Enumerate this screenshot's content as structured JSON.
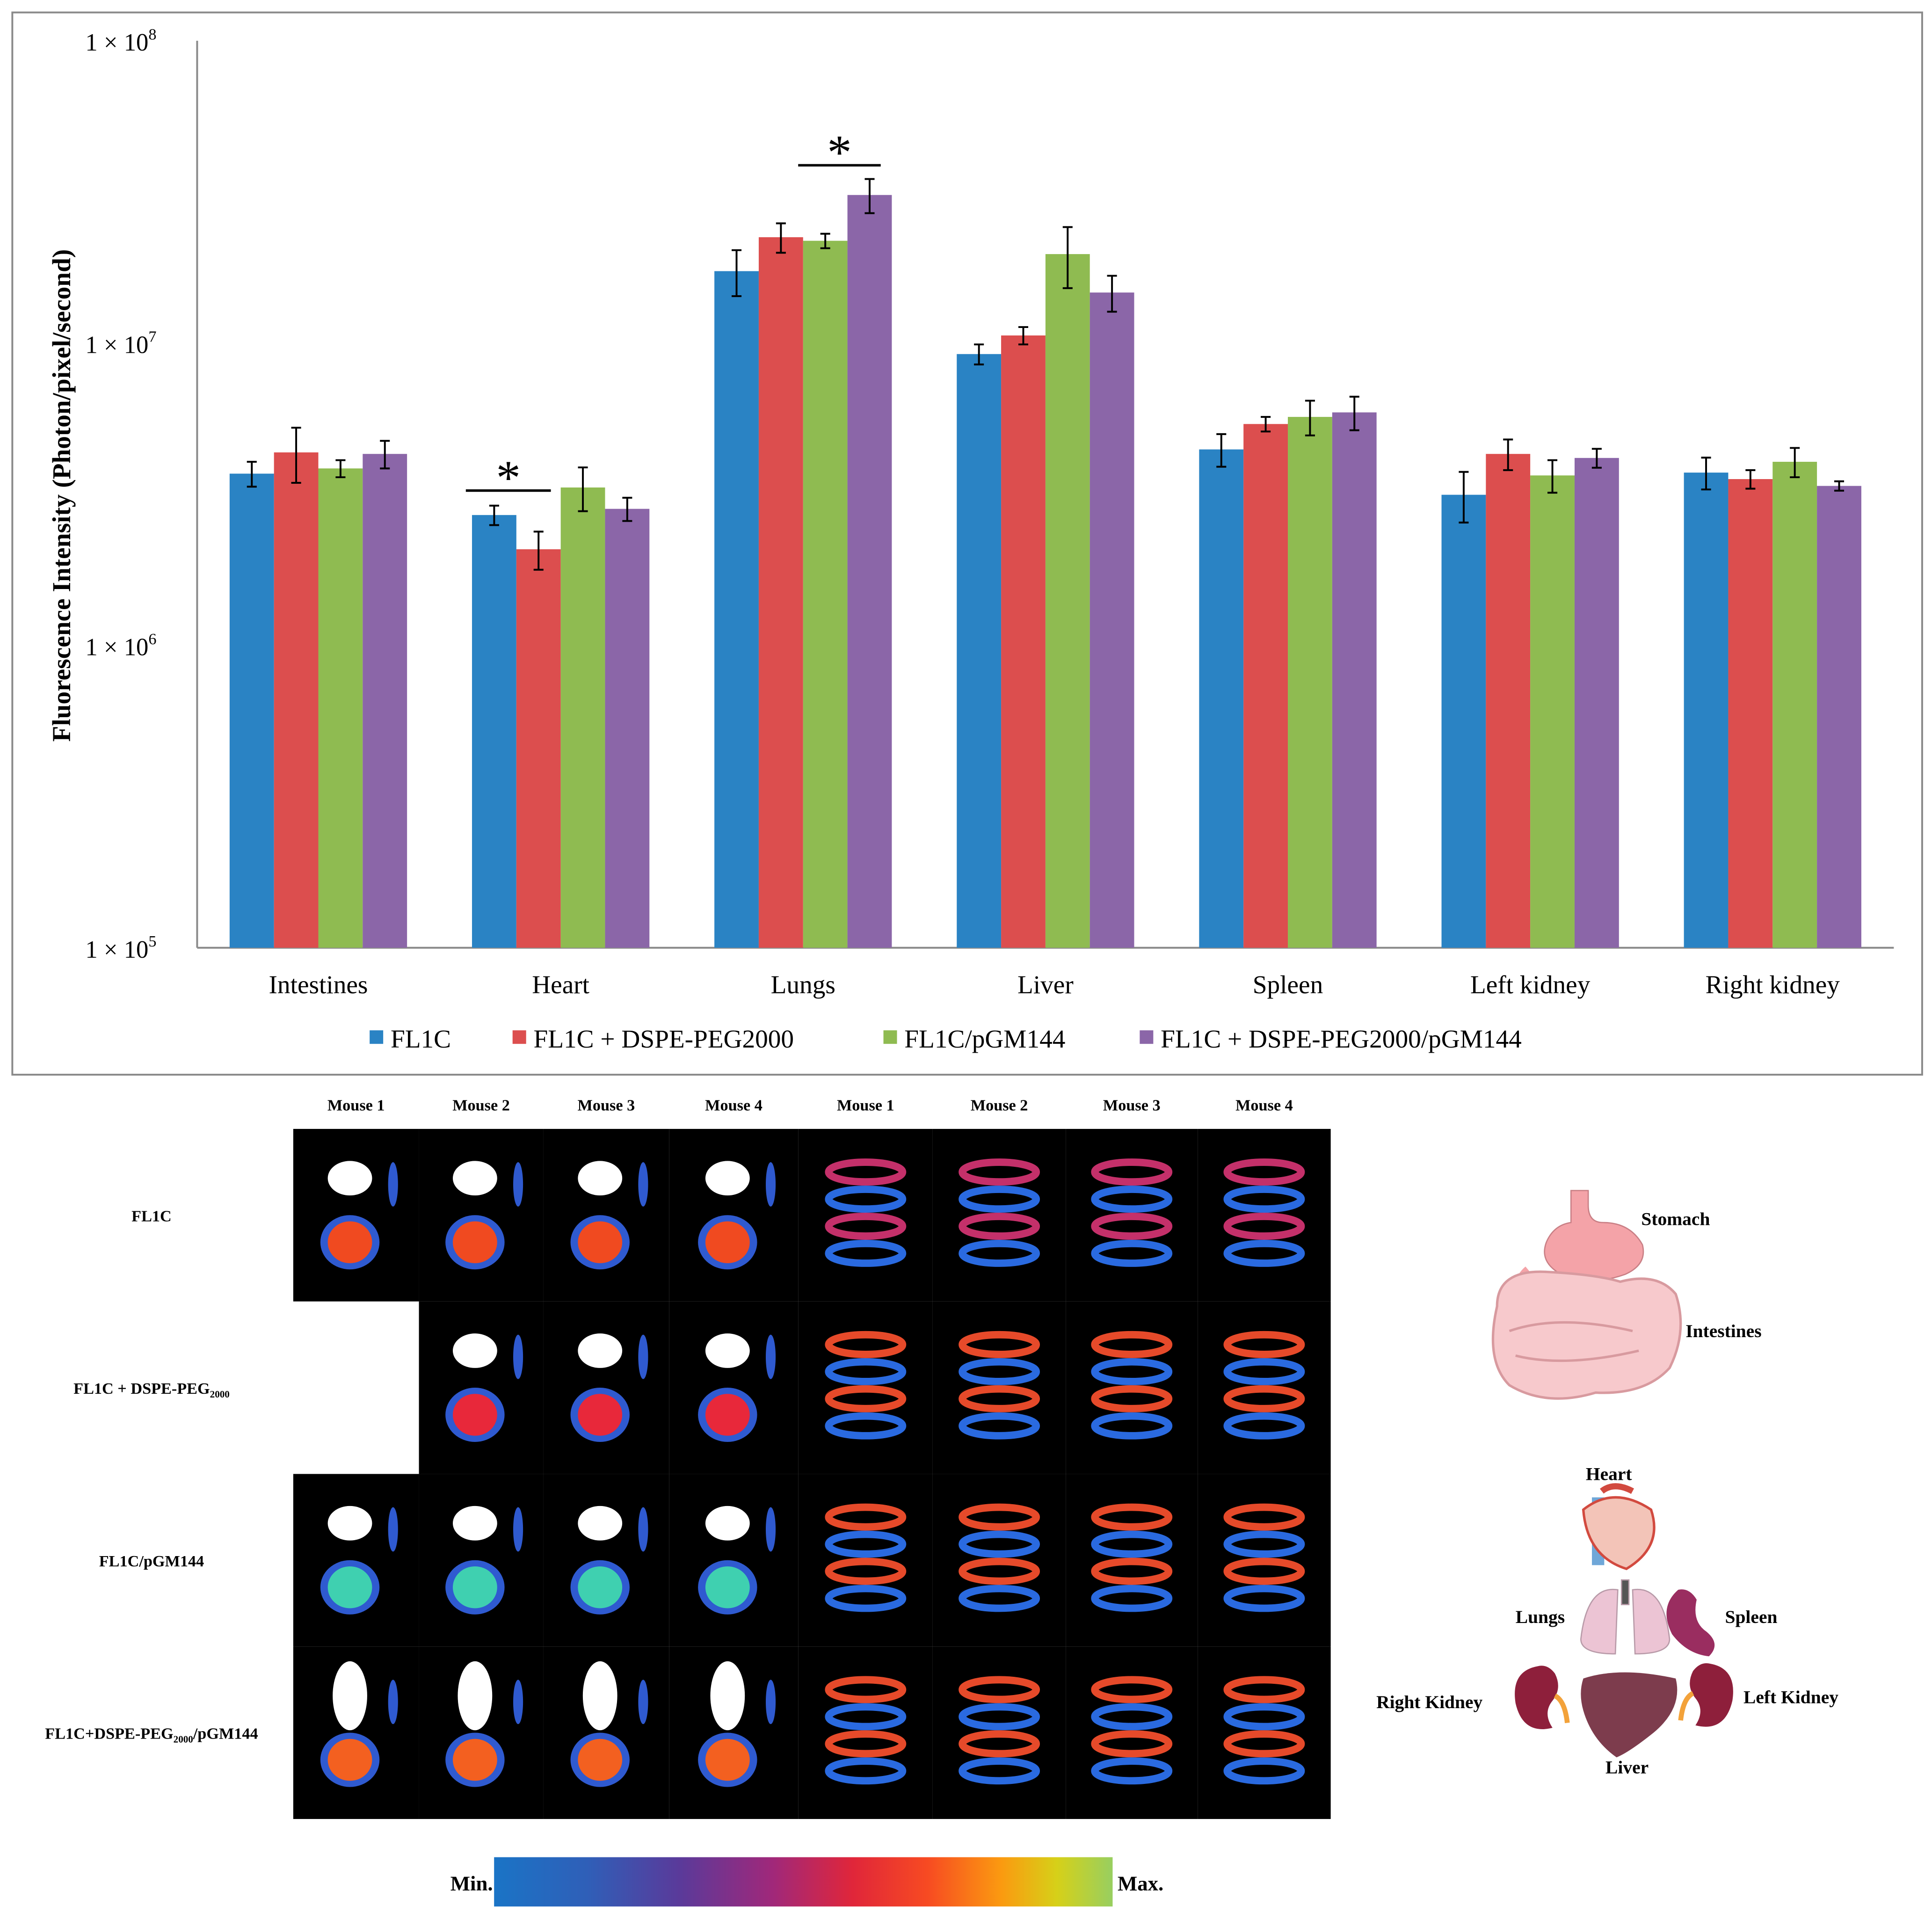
{
  "chart_data": {
    "type": "bar",
    "title": "",
    "ylabel": "Fluorescence Intensity (Photon/pixel/second)",
    "xlabel": "",
    "yscale": "log",
    "ylim": [
      100000,
      100000000
    ],
    "yticks": [
      {
        "value": 100000000,
        "base": "1 × 10",
        "exp": "8"
      },
      {
        "value": 10000000,
        "base": "1 × 10",
        "exp": "7"
      },
      {
        "value": 1000000,
        "base": "1 × 10",
        "exp": "6"
      },
      {
        "value": 100000,
        "base": "1 × 10",
        "exp": "5"
      }
    ],
    "categories": [
      "Intestines",
      "Heart",
      "Lungs",
      "Liver",
      "Spleen",
      "Left kidney",
      "Right kidney"
    ],
    "legend_position": "bottom",
    "series": [
      {
        "name": "FL1C",
        "color": "#2a83c4",
        "values": [
          3700000,
          2700000,
          17300000,
          9200000,
          4450000,
          3150000,
          3730000
        ],
        "errors": [
          350000,
          200000,
          3000000,
          700000,
          550000,
          600000,
          450000
        ]
      },
      {
        "name": "FL1C + DSPE-PEG2000",
        "color": "#dc4e4e",
        "values": [
          4350000,
          2080000,
          22400000,
          10600000,
          5400000,
          4300000,
          3550000
        ],
        "errors": [
          900000,
          300000,
          2500000,
          700000,
          300000,
          500000,
          250000
        ]
      },
      {
        "name": "FL1C/pGM144",
        "color": "#8fbb51",
        "values": [
          3850000,
          3330000,
          21800000,
          19700000,
          5700000,
          3650000,
          4050000
        ],
        "errors": [
          250000,
          550000,
          1200000,
          4500000,
          750000,
          450000,
          450000
        ]
      },
      {
        "name": "FL1C + DSPE-PEG2000/pGM144",
        "color": "#8b66a8",
        "values": [
          4300000,
          2830000,
          30900000,
          14700000,
          5900000,
          4170000,
          3370000
        ],
        "errors": [
          450000,
          250000,
          4000000,
          2000000,
          750000,
          300000,
          120000
        ]
      }
    ],
    "annotations": [
      {
        "text": "*",
        "category": "Heart",
        "meaning": "significance"
      },
      {
        "text": "*",
        "category": "Lungs",
        "meaning": "significance"
      }
    ]
  },
  "images": {
    "column_headers": [
      "Mouse 1",
      "Mouse 2",
      "Mouse 3",
      "Mouse 4",
      "Mouse 1",
      "Mouse 2",
      "Mouse 3",
      "Mouse 4"
    ],
    "rows": [
      {
        "label": "FL1C",
        "sub": "",
        "suffix": ""
      },
      {
        "label": "FL1C + DSPE-PEG",
        "sub": "2000",
        "suffix": ""
      },
      {
        "label": "FL1C/pGM144",
        "sub": "",
        "suffix": ""
      },
      {
        "label": "FL1C+DSPE-PEG",
        "sub": "2000",
        "suffix": "/pGM144"
      }
    ],
    "colorbar": {
      "min_label": "Min.",
      "max_label": "Max."
    }
  },
  "organ_diagram": {
    "labels": {
      "stomach": "Stomach",
      "intestines": "Intestines",
      "heart": "Heart",
      "lungs": "Lungs",
      "spleen": "Spleen",
      "right_kidney": "Right Kidney",
      "left_kidney": "Left Kidney",
      "liver": "Liver"
    }
  }
}
